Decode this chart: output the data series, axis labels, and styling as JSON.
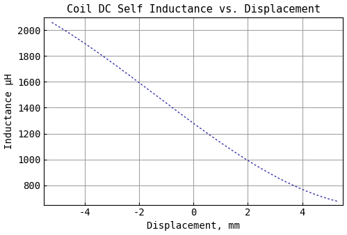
{
  "title": "Coil DC Self Inductance vs. Displacement",
  "xlabel": "Displacement, mm",
  "ylabel": "Inductance μH",
  "xlim": [
    -5.5,
    5.5
  ],
  "ylim": [
    650,
    2100
  ],
  "xticks": [
    -4,
    -2,
    0,
    2,
    4
  ],
  "yticks": [
    800,
    1000,
    1200,
    1400,
    1600,
    1800,
    2000
  ],
  "line_color": "#3333aa",
  "background_color": "#ffffff",
  "grid_color": "#999999",
  "x_start": -5.2,
  "x_end": 5.3,
  "L_min": 650,
  "L_max": 2060,
  "sigmoid_k": 0.28,
  "sigmoid_x0": 0.3,
  "title_fontsize": 11,
  "label_fontsize": 10,
  "tick_fontsize": 10
}
